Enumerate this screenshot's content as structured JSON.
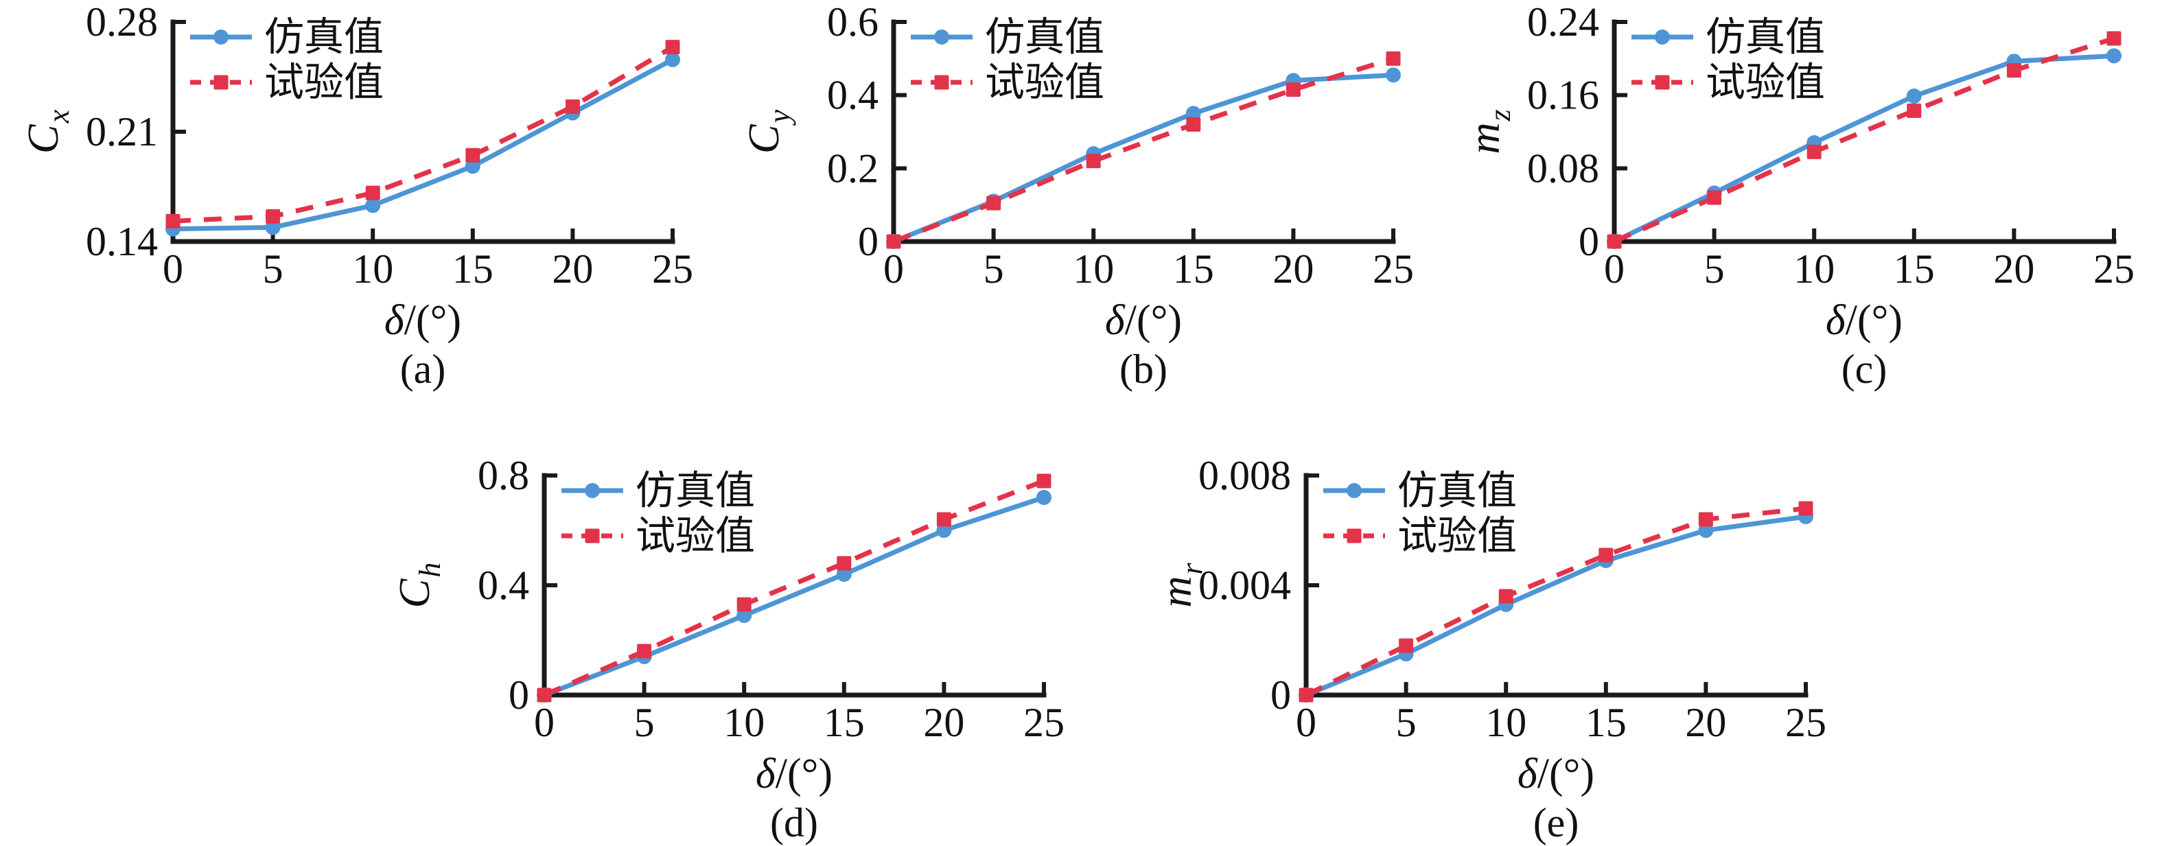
{
  "figure": {
    "background": "#ffffff"
  },
  "colors": {
    "sim": "#4E95D6",
    "exp": "#E3334A",
    "axis": "#1a1a1a",
    "text": "#111111"
  },
  "legend": {
    "items": [
      {
        "label": "仿真值",
        "series": "sim",
        "line": "solid",
        "marker": "circle"
      },
      {
        "label": "试验值",
        "series": "exp",
        "line": "dashed",
        "marker": "square"
      }
    ]
  },
  "xlabel": {
    "italic": "δ",
    "rest": "/(°)"
  },
  "chart_data": [
    {
      "id": "a",
      "type": "line",
      "caption": "(a)",
      "row": "top",
      "ylabel": {
        "main": "C",
        "sub": "x"
      },
      "x": [
        0,
        5,
        10,
        15,
        20,
        25
      ],
      "xlim": [
        0,
        25
      ],
      "xticks": [
        0,
        5,
        10,
        15,
        20,
        25
      ],
      "xtick_labels": [
        "0",
        "5",
        "10",
        "15",
        "20",
        "25"
      ],
      "ylim": [
        0.14,
        0.28
      ],
      "yticks": [
        0.14,
        0.21,
        0.28
      ],
      "ytick_labels": [
        "0.14",
        "0.21",
        "0.28"
      ],
      "grid": false,
      "legend_position": "top-left",
      "series": [
        {
          "name": "仿真值",
          "key": "sim",
          "line": "solid",
          "marker": "circle",
          "values": [
            0.148,
            0.149,
            0.163,
            0.188,
            0.222,
            0.256
          ]
        },
        {
          "name": "试验值",
          "key": "exp",
          "line": "dashed",
          "marker": "square",
          "values": [
            0.153,
            0.156,
            0.171,
            0.195,
            0.226,
            0.264
          ]
        }
      ]
    },
    {
      "id": "b",
      "type": "line",
      "caption": "(b)",
      "row": "top",
      "ylabel": {
        "main": "C",
        "sub": "y"
      },
      "x": [
        0,
        5,
        10,
        15,
        20,
        25
      ],
      "xlim": [
        0,
        25
      ],
      "xticks": [
        0,
        5,
        10,
        15,
        20,
        25
      ],
      "xtick_labels": [
        "0",
        "5",
        "10",
        "15",
        "20",
        "25"
      ],
      "ylim": [
        0,
        0.6
      ],
      "yticks": [
        0,
        0.2,
        0.4,
        0.6
      ],
      "ytick_labels": [
        "0",
        "0.2",
        "0.4",
        "0.6"
      ],
      "grid": false,
      "legend_position": "top-left",
      "series": [
        {
          "name": "仿真值",
          "key": "sim",
          "line": "solid",
          "marker": "circle",
          "values": [
            0,
            0.11,
            0.24,
            0.35,
            0.44,
            0.455
          ]
        },
        {
          "name": "试验值",
          "key": "exp",
          "line": "dashed",
          "marker": "square",
          "values": [
            0,
            0.105,
            0.22,
            0.32,
            0.415,
            0.5
          ]
        }
      ]
    },
    {
      "id": "c",
      "type": "line",
      "caption": "(c)",
      "row": "top",
      "ylabel": {
        "main": "m",
        "sub": "z"
      },
      "x": [
        0,
        5,
        10,
        15,
        20,
        25
      ],
      "xlim": [
        0,
        25
      ],
      "xticks": [
        0,
        5,
        10,
        15,
        20,
        25
      ],
      "xtick_labels": [
        "0",
        "5",
        "10",
        "15",
        "20",
        "25"
      ],
      "ylim": [
        0,
        0.24
      ],
      "yticks": [
        0,
        0.08,
        0.16,
        0.24
      ],
      "ytick_labels": [
        "0",
        "0.08",
        "0.16",
        "0.24"
      ],
      "grid": false,
      "legend_position": "top-left",
      "series": [
        {
          "name": "仿真值",
          "key": "sim",
          "line": "solid",
          "marker": "circle",
          "values": [
            0,
            0.053,
            0.108,
            0.159,
            0.197,
            0.203
          ]
        },
        {
          "name": "试验值",
          "key": "exp",
          "line": "dashed",
          "marker": "square",
          "values": [
            0,
            0.048,
            0.098,
            0.143,
            0.187,
            0.222
          ]
        }
      ]
    },
    {
      "id": "d",
      "type": "line",
      "caption": "(d)",
      "row": "bottom",
      "ylabel": {
        "main": "C",
        "sub": "h"
      },
      "x": [
        0,
        5,
        10,
        15,
        20,
        25
      ],
      "xlim": [
        0,
        25
      ],
      "xticks": [
        0,
        5,
        10,
        15,
        20,
        25
      ],
      "xtick_labels": [
        "0",
        "5",
        "10",
        "15",
        "20",
        "25"
      ],
      "ylim": [
        0,
        0.8
      ],
      "yticks": [
        0,
        0.4,
        0.8
      ],
      "ytick_labels": [
        "0",
        "0.4",
        "0.8"
      ],
      "grid": false,
      "legend_position": "top-left",
      "series": [
        {
          "name": "仿真值",
          "key": "sim",
          "line": "solid",
          "marker": "circle",
          "values": [
            0,
            0.14,
            0.29,
            0.44,
            0.6,
            0.72
          ]
        },
        {
          "name": "试验值",
          "key": "exp",
          "line": "dashed",
          "marker": "square",
          "values": [
            0,
            0.16,
            0.33,
            0.48,
            0.64,
            0.78
          ]
        }
      ]
    },
    {
      "id": "e",
      "type": "line",
      "caption": "(e)",
      "row": "bottom",
      "ylabel": {
        "main": "m",
        "sub": "r"
      },
      "x": [
        0,
        5,
        10,
        15,
        20,
        25
      ],
      "xlim": [
        0,
        25
      ],
      "xticks": [
        0,
        5,
        10,
        15,
        20,
        25
      ],
      "xtick_labels": [
        "0",
        "5",
        "10",
        "15",
        "20",
        "25"
      ],
      "ylim": [
        0,
        0.008
      ],
      "yticks": [
        0,
        0.004,
        0.008
      ],
      "ytick_labels": [
        "0",
        "0.004",
        "0.008"
      ],
      "grid": false,
      "legend_position": "top-left",
      "series": [
        {
          "name": "仿真值",
          "key": "sim",
          "line": "solid",
          "marker": "circle",
          "values": [
            0,
            0.0015,
            0.0033,
            0.0049,
            0.006,
            0.0065
          ]
        },
        {
          "name": "试验值",
          "key": "exp",
          "line": "dashed",
          "marker": "square",
          "values": [
            0,
            0.0018,
            0.0036,
            0.0051,
            0.0064,
            0.0068
          ]
        }
      ]
    }
  ]
}
